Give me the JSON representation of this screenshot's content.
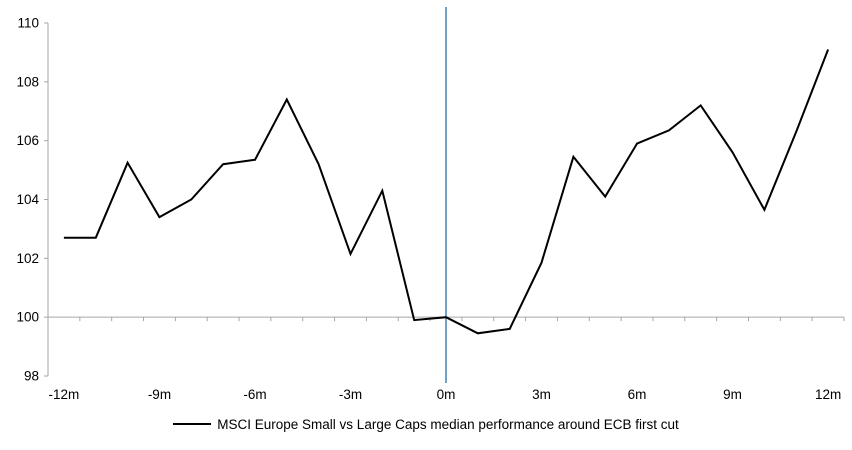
{
  "chart_data": {
    "type": "line",
    "title": "",
    "legend_label": "MSCI Europe Small vs Large Caps median performance around ECB first cut",
    "legend_position": "bottom",
    "grid": false,
    "x_months": [
      -12,
      -11,
      -10,
      -9,
      -8,
      -7,
      -6,
      -5,
      -4,
      -3,
      -2,
      -1,
      0,
      1,
      2,
      3,
      4,
      5,
      6,
      7,
      8,
      9,
      10,
      11,
      12
    ],
    "series": [
      {
        "name": "MSCI Europe Small vs Large Caps median performance around ECB first cut",
        "values": [
          102.7,
          102.7,
          105.25,
          103.4,
          104.0,
          105.2,
          105.35,
          107.4,
          105.2,
          102.15,
          104.3,
          99.9,
          100.0,
          99.45,
          99.6,
          101.85,
          105.45,
          104.1,
          105.9,
          106.35,
          107.2,
          105.6,
          103.65,
          106.3,
          109.1
        ]
      }
    ],
    "x_tick_labels": [
      {
        "month": -12,
        "label": "-12m"
      },
      {
        "month": -9,
        "label": "-9m"
      },
      {
        "month": -6,
        "label": "-6m"
      },
      {
        "month": -3,
        "label": "-3m"
      },
      {
        "month": 0,
        "label": "0m"
      },
      {
        "month": 3,
        "label": "3m"
      },
      {
        "month": 6,
        "label": "6m"
      },
      {
        "month": 9,
        "label": "9m"
      },
      {
        "month": 12,
        "label": "12m"
      }
    ],
    "y_ticks": [
      98,
      100,
      102,
      104,
      106,
      108,
      110
    ],
    "ylim": [
      98,
      110
    ],
    "x_axis_position_value": 100,
    "event_line_month": 0,
    "colors": {
      "series_line": "#000000",
      "event_line": "#6FA0C8",
      "axis": "#A6A6A6",
      "text": "#000000",
      "background": "#FFFFFF"
    }
  }
}
